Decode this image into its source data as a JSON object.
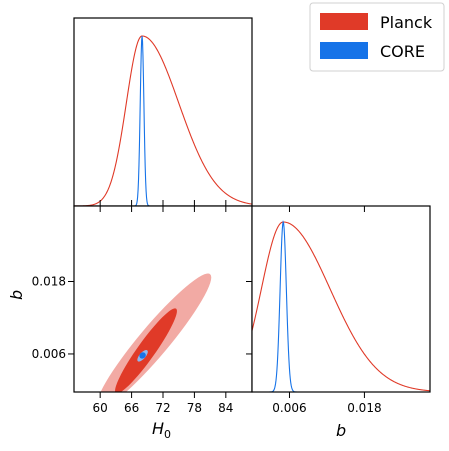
{
  "chart_data": {
    "type": "triangle-contour",
    "parameters": [
      "H0",
      "b"
    ],
    "axis_labels": {
      "H0": "H",
      "H0_sub": "0",
      "b": "b"
    },
    "colors": {
      "Planck": "#e03a28",
      "Planck_light": "#f2aaa4",
      "CORE": "#1673e8"
    },
    "legend": {
      "placement": "top-right",
      "entries": [
        {
          "name": "Planck",
          "color": "#e03a28"
        },
        {
          "name": "CORE",
          "color": "#1673e8"
        }
      ]
    },
    "panels": {
      "H0_marginal": {
        "xlim": [
          55,
          89
        ],
        "xticks": [
          60,
          66,
          72,
          78,
          84
        ],
        "series": [
          {
            "name": "Planck",
            "peak": 68.0,
            "sigma_left": 3.0,
            "sigma_right": 7.0
          },
          {
            "name": "CORE",
            "peak": 68.0,
            "sigma": 0.35
          }
        ]
      },
      "b_marginal": {
        "xlim": [
          0.0,
          0.0285
        ],
        "xticks": [
          0.006,
          0.018
        ],
        "xticklabels": [
          "0.006",
          "0.018"
        ],
        "series": [
          {
            "name": "Planck",
            "peak": 0.005,
            "sigma_left": 0.0035,
            "sigma_right": 0.0075
          },
          {
            "name": "CORE",
            "peak": 0.005,
            "sigma": 0.0005
          }
        ]
      },
      "joint": {
        "xlim": [
          55,
          89
        ],
        "ylim": [
          -0.0003,
          0.0305
        ],
        "xticks": [
          60,
          66,
          72,
          78,
          84
        ],
        "xticklabels": [
          "60",
          "66",
          "72",
          "78",
          "84"
        ],
        "yticks": [
          0.006,
          0.018
        ],
        "yticklabels": [
          "0.006",
          "0.018"
        ],
        "contours": [
          {
            "name": "Planck",
            "level": "95%",
            "H0_range": [
              59.5,
              81.0
            ],
            "b_range": [
              -0.003,
              0.0192
            ]
          },
          {
            "name": "Planck",
            "level": "68%",
            "H0_range": [
              63.0,
              74.5
            ],
            "b_range": [
              -0.0005,
              0.0135
            ]
          },
          {
            "name": "CORE",
            "level": "95%",
            "H0_range": [
              67.2,
              69.0
            ],
            "b_range": [
              0.0048,
              0.0066
            ]
          },
          {
            "name": "CORE",
            "level": "68%",
            "H0_range": [
              67.6,
              68.6
            ],
            "b_range": [
              0.0054,
              0.0061
            ]
          }
        ]
      }
    }
  }
}
